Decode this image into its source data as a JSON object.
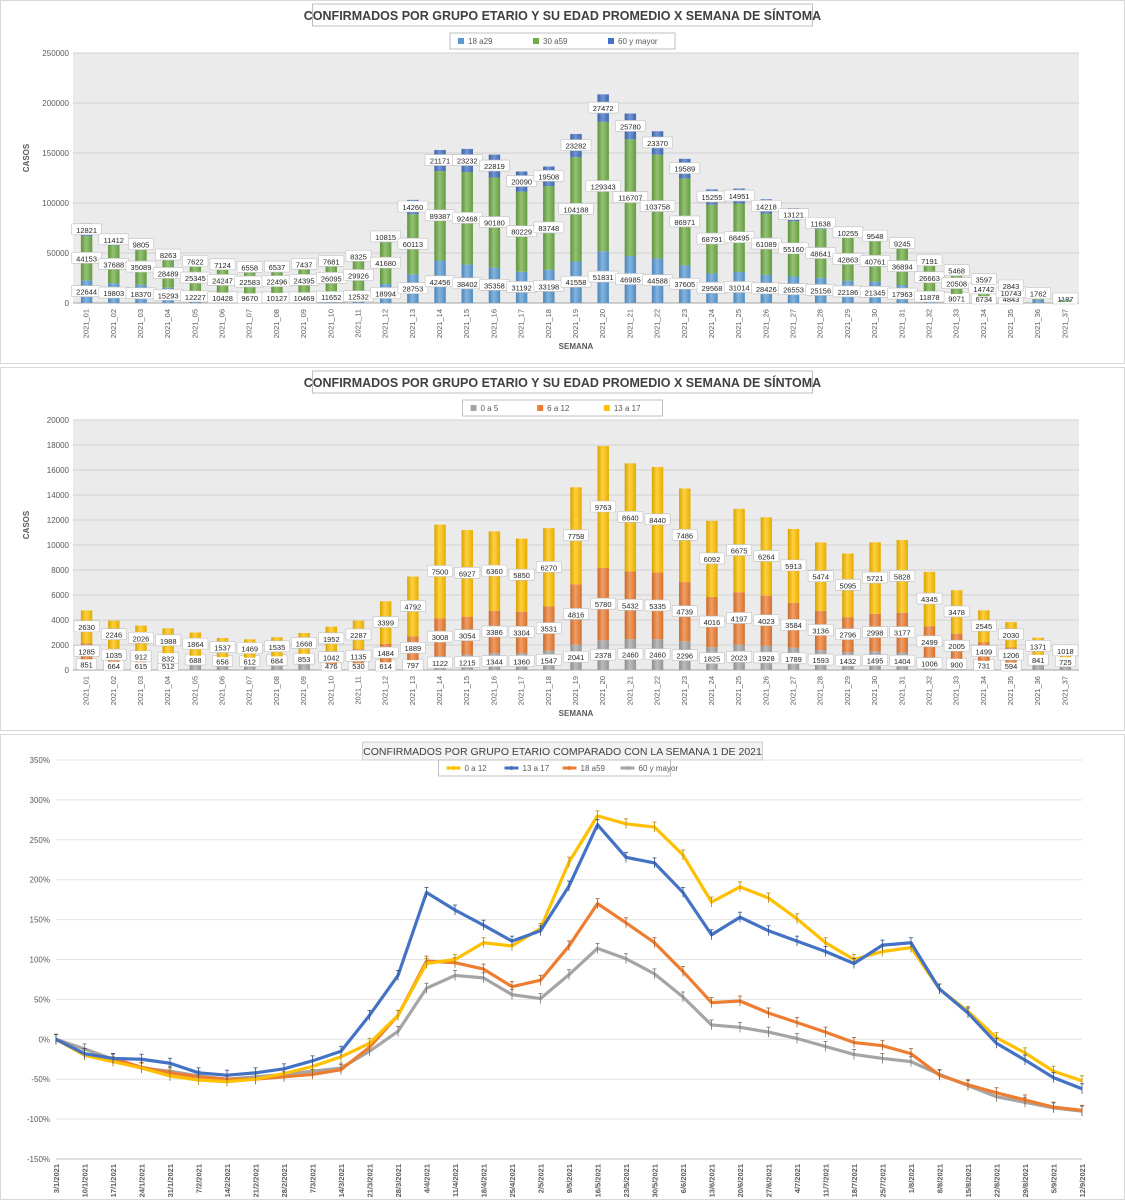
{
  "chart_data": [
    {
      "type": "bar",
      "stacked": true,
      "title": "CONFIRMADOS POR GRUPO ETARIO Y SU EDAD PROMEDIO X SEMANA DE SÍNTOMA",
      "xlabel": "SEMANA",
      "ylabel": "CASOS",
      "ylim": [
        0,
        250000
      ],
      "yticks": [
        "0",
        "50000",
        "100000",
        "150000",
        "200000",
        "250000"
      ],
      "legend_position": "top",
      "grid": true,
      "categories": [
        "2021_01",
        "2021_02",
        "2021_03",
        "2021_04",
        "2021_05",
        "2021_06",
        "2021_07",
        "2021_08",
        "2021_09",
        "2021_10",
        "2021_11",
        "2021_12",
        "2021_13",
        "2021_14",
        "2021_15",
        "2021_16",
        "2021_17",
        "2021_18",
        "2021_19",
        "2021_20",
        "2021_21",
        "2021_22",
        "2021_23",
        "2021_24",
        "2021_25",
        "2021_26",
        "2021_27",
        "2021_28",
        "2021_29",
        "2021_30",
        "2021_31",
        "2021_32",
        "2021_33",
        "2021_34",
        "2021_35",
        "2021_36",
        "2021_37"
      ],
      "series": [
        {
          "name": "18 a29",
          "color": "#5b9bd5",
          "values": [
            22644,
            19803,
            18370,
            15293,
            12227,
            10428,
            9670,
            10127,
            10469,
            11652,
            12532,
            18994,
            28753,
            42456,
            38402,
            35358,
            31192,
            33198,
            41558,
            51831,
            46985,
            44588,
            37605,
            29568,
            31014,
            28426,
            26553,
            25156,
            22186,
            21345,
            17963,
            11878,
            9071,
            6734,
            4843,
            3370,
            1187
          ]
        },
        {
          "name": "30 a59",
          "color": "#70ad47",
          "values": [
            44153,
            37688,
            35089,
            28489,
            25345,
            24247,
            22583,
            22496,
            24395,
            26095,
            29926,
            41680,
            60113,
            89387,
            92468,
            90180,
            80229,
            83748,
            104188,
            129343,
            116707,
            103758,
            86971,
            68791,
            68495,
            61089,
            55160,
            48641,
            42863,
            40761,
            36894,
            26663,
            20508,
            14742,
            10743,
            5000,
            1500
          ]
        },
        {
          "name": "60 y mayor",
          "color": "#4472c4",
          "values": [
            12821,
            11412,
            9805,
            8263,
            7622,
            7124,
            6558,
            6537,
            7437,
            7681,
            8325,
            10815,
            14260,
            21171,
            23232,
            22819,
            20090,
            19508,
            23282,
            27472,
            25780,
            23370,
            19589,
            15255,
            14951,
            14218,
            13121,
            11638,
            10255,
            9548,
            9245,
            7191,
            5468,
            3597,
            2843,
            1762,
            600
          ]
        }
      ],
      "labels": {
        "s0": [
          "22644",
          "19803",
          "18370",
          "15293",
          "12227",
          "10428",
          "9670",
          "10127",
          "10469",
          "11652",
          "12532",
          "18994",
          "28753",
          "42456",
          "38402",
          "35358",
          "31192",
          "33198",
          "41558",
          "51831",
          "46985",
          "44588",
          "37605",
          "29568",
          "31014",
          "28426",
          "26553",
          "25156",
          "22186",
          "21345",
          "17963",
          "11878",
          "9071",
          "6734",
          "4843",
          "",
          "1187"
        ],
        "s1": [
          "44153",
          "37688",
          "35089",
          "28489",
          "25345",
          "24247",
          "22583",
          "22496",
          "24395",
          "26095",
          "29926",
          "41680",
          "60113",
          "89387",
          "92468",
          "90180",
          "80229",
          "83748",
          "104188",
          "129343",
          "116707",
          "103758",
          "86971",
          "68791",
          "68495",
          "61089",
          "55160",
          "48641",
          "42863",
          "40761",
          "36894",
          "26663",
          "20508",
          "14742",
          "10743",
          "",
          ""
        ],
        "s2": [
          "12821",
          "11412",
          "9805",
          "8263",
          "7622",
          "7124",
          "6558",
          "6537",
          "7437",
          "7681",
          "8325",
          "10815",
          "14260",
          "21171",
          "23232",
          "22819",
          "20090",
          "19508",
          "23282",
          "27472",
          "25780",
          "23370",
          "19589",
          "15255",
          "14951",
          "14218",
          "13121",
          "11638",
          "10255",
          "9548",
          "9245",
          "7191",
          "5468",
          "3597",
          "2843",
          "1762",
          ""
        ]
      }
    },
    {
      "type": "bar",
      "stacked": true,
      "title": "CONFIRMADOS POR GRUPO ETARIO Y SU EDAD PROMEDIO X SEMANA DE SÍNTOMA",
      "xlabel": "SEMANA",
      "ylabel": "CASOS",
      "ylim": [
        0,
        20000
      ],
      "yticks": [
        "0",
        "2000",
        "4000",
        "6000",
        "8000",
        "10000",
        "12000",
        "14000",
        "16000",
        "18000",
        "20000"
      ],
      "legend_position": "top",
      "grid": true,
      "categories": [
        "2021_01",
        "2021_02",
        "2021_03",
        "2021_04",
        "2021_05",
        "2021_06",
        "2021_07",
        "2021_08",
        "2021_09",
        "2021_10",
        "2021_11",
        "2021_12",
        "2021_13",
        "2021_14",
        "2021_15",
        "2021_16",
        "2021_17",
        "2021_18",
        "2021_19",
        "2021_20",
        "2021_21",
        "2021_22",
        "2021_23",
        "2021_24",
        "2021_25",
        "2021_26",
        "2021_27",
        "2021_28",
        "2021_29",
        "2021_30",
        "2021_31",
        "2021_32",
        "2021_33",
        "2021_34",
        "2021_35",
        "2021_36",
        "2021_37"
      ],
      "series": [
        {
          "name": "0 a 5",
          "color": "#a5a5a5",
          "values": [
            851,
            664,
            615,
            512,
            450,
            370,
            373,
            401,
            441,
            476,
            530,
            614,
            797,
            1122,
            1215,
            1344,
            1360,
            1547,
            2041,
            2378,
            2460,
            2460,
            2296,
            1825,
            2023,
            1928,
            1789,
            1593,
            1432,
            1495,
            1404,
            1006,
            900,
            731,
            594,
            370,
            297
          ]
        },
        {
          "name": "6 a 12",
          "color": "#ed7d31",
          "values": [
            1285,
            1035,
            912,
            832,
            688,
            656,
            612,
            684,
            853,
            1042,
            1135,
            1484,
            1889,
            3008,
            3054,
            3386,
            3304,
            3531,
            4816,
            5780,
            5432,
            5335,
            4739,
            4016,
            4197,
            4023,
            3584,
            3136,
            2796,
            2998,
            3177,
            2499,
            2005,
            1499,
            1206,
            841,
            725
          ]
        },
        {
          "name": "13 a 17",
          "color": "#ffc000",
          "values": [
            2630,
            2246,
            2026,
            1988,
            1864,
            1537,
            1469,
            1535,
            1668,
            1952,
            2287,
            3399,
            4792,
            7500,
            6927,
            6360,
            5850,
            6270,
            7758,
            9763,
            8640,
            8440,
            7486,
            6092,
            6675,
            6264,
            5913,
            5474,
            5095,
            5721,
            5828,
            4345,
            3478,
            2545,
            2030,
            1371,
            1018
          ]
        }
      ],
      "labels": {
        "s0": [
          "851",
          "664",
          "615",
          "512",
          "",
          "",
          "",
          "",
          "",
          "476",
          "530",
          "614",
          "797",
          "1122",
          "1215",
          "1344",
          "1360",
          "1547",
          "2041",
          "2378",
          "2460",
          "2460",
          "2296",
          "1825",
          "2023",
          "1928",
          "1789",
          "1593",
          "1432",
          "1495",
          "1404",
          "1006",
          "900",
          "731",
          "594",
          "",
          ""
        ],
        "s1": [
          "1285",
          "1035",
          "912",
          "832",
          "688",
          "656",
          "612",
          "684",
          "853",
          "1042",
          "1135",
          "1484",
          "1889",
          "3008",
          "3054",
          "3386",
          "3304",
          "3531",
          "4816",
          "5780",
          "5432",
          "5335",
          "4739",
          "4016",
          "4197",
          "4023",
          "3584",
          "3136",
          "2796",
          "2998",
          "3177",
          "2499",
          "2005",
          "1499",
          "1206",
          "841",
          "725"
        ],
        "s2": [
          "2630",
          "2246",
          "2026",
          "1988",
          "1864",
          "1537",
          "1469",
          "1535",
          "1668",
          "1952",
          "2287",
          "3399",
          "4792",
          "7500",
          "6927",
          "6360",
          "5850",
          "6270",
          "7758",
          "9763",
          "8640",
          "8440",
          "7486",
          "6092",
          "6675",
          "6264",
          "5913",
          "5474",
          "5095",
          "5721",
          "5828",
          "4345",
          "3478",
          "2545",
          "2030",
          "1371",
          "1018"
        ]
      }
    },
    {
      "type": "line",
      "title": "CONFIRMADOS POR GRUPO ETARIO COMPARADO CON LA SEMANA 1 DE 2021",
      "xlabel": "",
      "ylabel": "",
      "ylim": [
        -150,
        350
      ],
      "yticks": [
        "-150%",
        "-100%",
        "-50%",
        "0%",
        "50%",
        "100%",
        "150%",
        "200%",
        "250%",
        "300%",
        "350%"
      ],
      "legend_position": "top",
      "grid": true,
      "x": [
        "3/1/2021",
        "10/1/2021",
        "17/1/2021",
        "24/1/2021",
        "31/1/2021",
        "7/2/2021",
        "14/2/2021",
        "21/2/2021",
        "28/2/2021",
        "7/3/2021",
        "14/3/2021",
        "21/3/2021",
        "28/3/2021",
        "4/4/2021",
        "11/4/2021",
        "18/4/2021",
        "25/4/2021",
        "2/5/2021",
        "9/5/2021",
        "16/5/2021",
        "23/5/2021",
        "30/5/2021",
        "6/6/2021",
        "13/6/2021",
        "20/6/2021",
        "27/6/2021",
        "4/7/2021",
        "11/7/2021",
        "18/7/2021",
        "25/7/2021",
        "1/8/2021",
        "8/8/2021",
        "15/8/2021",
        "22/8/2021",
        "29/8/2021",
        "5/9/2021",
        "12/9/2021"
      ],
      "series": [
        {
          "name": "0 a 12",
          "color": "#ffc000",
          "values": [
            0,
            -20,
            -28,
            -36,
            -46,
            -51,
            -53,
            -50,
            -43,
            -34,
            -22,
            -5,
            30,
            95,
            100,
            121,
            117,
            139,
            222,
            280,
            270,
            266,
            231,
            172,
            191,
            177,
            151,
            121,
            100,
            110,
            115,
            63,
            35,
            2,
            -17,
            -40,
            -52
          ]
        },
        {
          "name": "13 a 17",
          "color": "#4472c4",
          "values": [
            0,
            -18,
            -24,
            -25,
            -30,
            -42,
            -45,
            -42,
            -37,
            -27,
            -15,
            30,
            80,
            184,
            162,
            143,
            123,
            136,
            192,
            269,
            228,
            221,
            184,
            131,
            153,
            136,
            123,
            110,
            95,
            118,
            121,
            63,
            33,
            -5,
            -26,
            -48,
            -62
          ]
        },
        {
          "name": "18 a59",
          "color": "#ed7d31",
          "values": [
            0,
            -18,
            -24,
            -35,
            -42,
            -47,
            -50,
            -50,
            -47,
            -44,
            -38,
            -10,
            30,
            98,
            96,
            88,
            66,
            74,
            117,
            170,
            146,
            121,
            85,
            46,
            48,
            33,
            21,
            9,
            -4,
            -8,
            -18,
            -45,
            -57,
            -67,
            -76,
            -85,
            -89
          ]
        },
        {
          "name": "60 y mayor",
          "color": "#a5a5a5",
          "values": [
            0,
            -12,
            -25,
            -36,
            -40,
            -46,
            -50,
            -47,
            -44,
            -40,
            -36,
            -15,
            10,
            64,
            80,
            77,
            56,
            51,
            81,
            114,
            101,
            82,
            53,
            18,
            15,
            9,
            1,
            -9,
            -19,
            -24,
            -28,
            -44,
            -58,
            -72,
            -79,
            -86,
            -90
          ]
        }
      ]
    }
  ],
  "legends": [
    [
      "18 a29",
      "30 a59",
      "60 y mayor"
    ],
    [
      "0 a 5",
      "6 a 12",
      "13 a 17"
    ],
    [
      "0 a 12",
      "13 a 17",
      "18 a59",
      "60 y mayor"
    ]
  ],
  "colors": {
    "grid": "#d9d9d9",
    "plot_bg1": "#ebebeb",
    "title_text": "#404040",
    "axis_text": "#595959"
  }
}
